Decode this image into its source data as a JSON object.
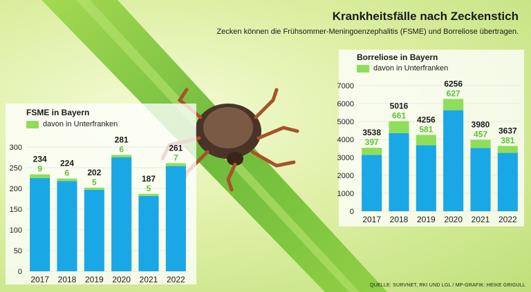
{
  "header": {
    "title": "Krankheitsfälle nach Zeckenstich",
    "subtitle": "Zecken können die Frühsommer-Meningoenzephalitis (FSME) und Borreliose übertragen."
  },
  "source": "QUELLE: SURVNET, RKI UND LGL / MP-GRAFIK: HEIKE GRIGULL",
  "colors": {
    "total_bar": "#1aa7e6",
    "unterfranken_bar": "#8fde5a",
    "unterfranken_label": "#5cc23a"
  },
  "chart_data": [
    {
      "type": "bar",
      "title": "FSME in Bayern",
      "legend": "davon in Unterfranken",
      "categories": [
        "2017",
        "2018",
        "2019",
        "2020",
        "2021",
        "2022"
      ],
      "series": [
        {
          "name": "FSME in Bayern",
          "values": [
            234,
            224,
            202,
            281,
            187,
            261
          ]
        },
        {
          "name": "davon in Unterfranken",
          "values": [
            9,
            6,
            5,
            6,
            5,
            7
          ]
        }
      ],
      "yticks": [
        0,
        50,
        100,
        150,
        200,
        250,
        300
      ],
      "ylim": [
        0,
        300
      ]
    },
    {
      "type": "bar",
      "title": "Borreliose in Bayern",
      "legend": "davon in Unterfranken",
      "categories": [
        "2017",
        "2018",
        "2019",
        "2020",
        "2021",
        "2022"
      ],
      "series": [
        {
          "name": "Borreliose in Bayern",
          "values": [
            3538,
            5016,
            4256,
            6256,
            3980,
            3637
          ]
        },
        {
          "name": "davon in Unterfranken",
          "values": [
            397,
            661,
            581,
            627,
            457,
            381
          ]
        }
      ],
      "yticks": [
        0,
        1000,
        2000,
        3000,
        4000,
        5000,
        6000,
        7000
      ],
      "ylim": [
        0,
        7000
      ]
    }
  ]
}
